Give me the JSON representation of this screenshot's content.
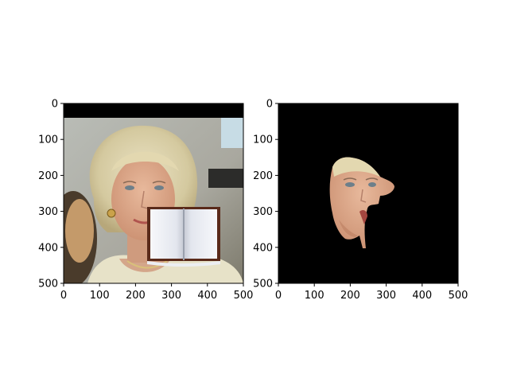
{
  "chart_data": [
    {
      "type": "image",
      "panel": "left",
      "content": "photo of a blonde woman with an open-book image pasted over the lower-right of her face",
      "xlim": [
        0,
        500
      ],
      "ylim": [
        500,
        0
      ],
      "x_ticks": [
        0,
        100,
        200,
        300,
        400,
        500
      ],
      "y_ticks": [
        0,
        100,
        200,
        300,
        400,
        500
      ],
      "x_tick_labels": [
        "0",
        "100",
        "200",
        "300",
        "400",
        "500"
      ],
      "y_tick_labels": [
        "0",
        "100",
        "200",
        "300",
        "400",
        "500"
      ],
      "grid": false
    },
    {
      "type": "image",
      "panel": "right",
      "content": "segmentation mask: black background showing only the visible face region",
      "xlim": [
        0,
        500
      ],
      "ylim": [
        500,
        0
      ],
      "x_ticks": [
        0,
        100,
        200,
        300,
        400,
        500
      ],
      "y_ticks": [
        0,
        100,
        200,
        300,
        400,
        500
      ],
      "x_tick_labels": [
        "0",
        "100",
        "200",
        "300",
        "400",
        "500"
      ],
      "y_tick_labels": [
        "0",
        "100",
        "200",
        "300",
        "400",
        "500"
      ],
      "grid": false
    }
  ],
  "colors": {
    "background": "#000000",
    "hair": "#d8cfa8",
    "skin": "#d9a78a",
    "book_border": "#5a2a1a",
    "book_page": "#eef0f4"
  }
}
